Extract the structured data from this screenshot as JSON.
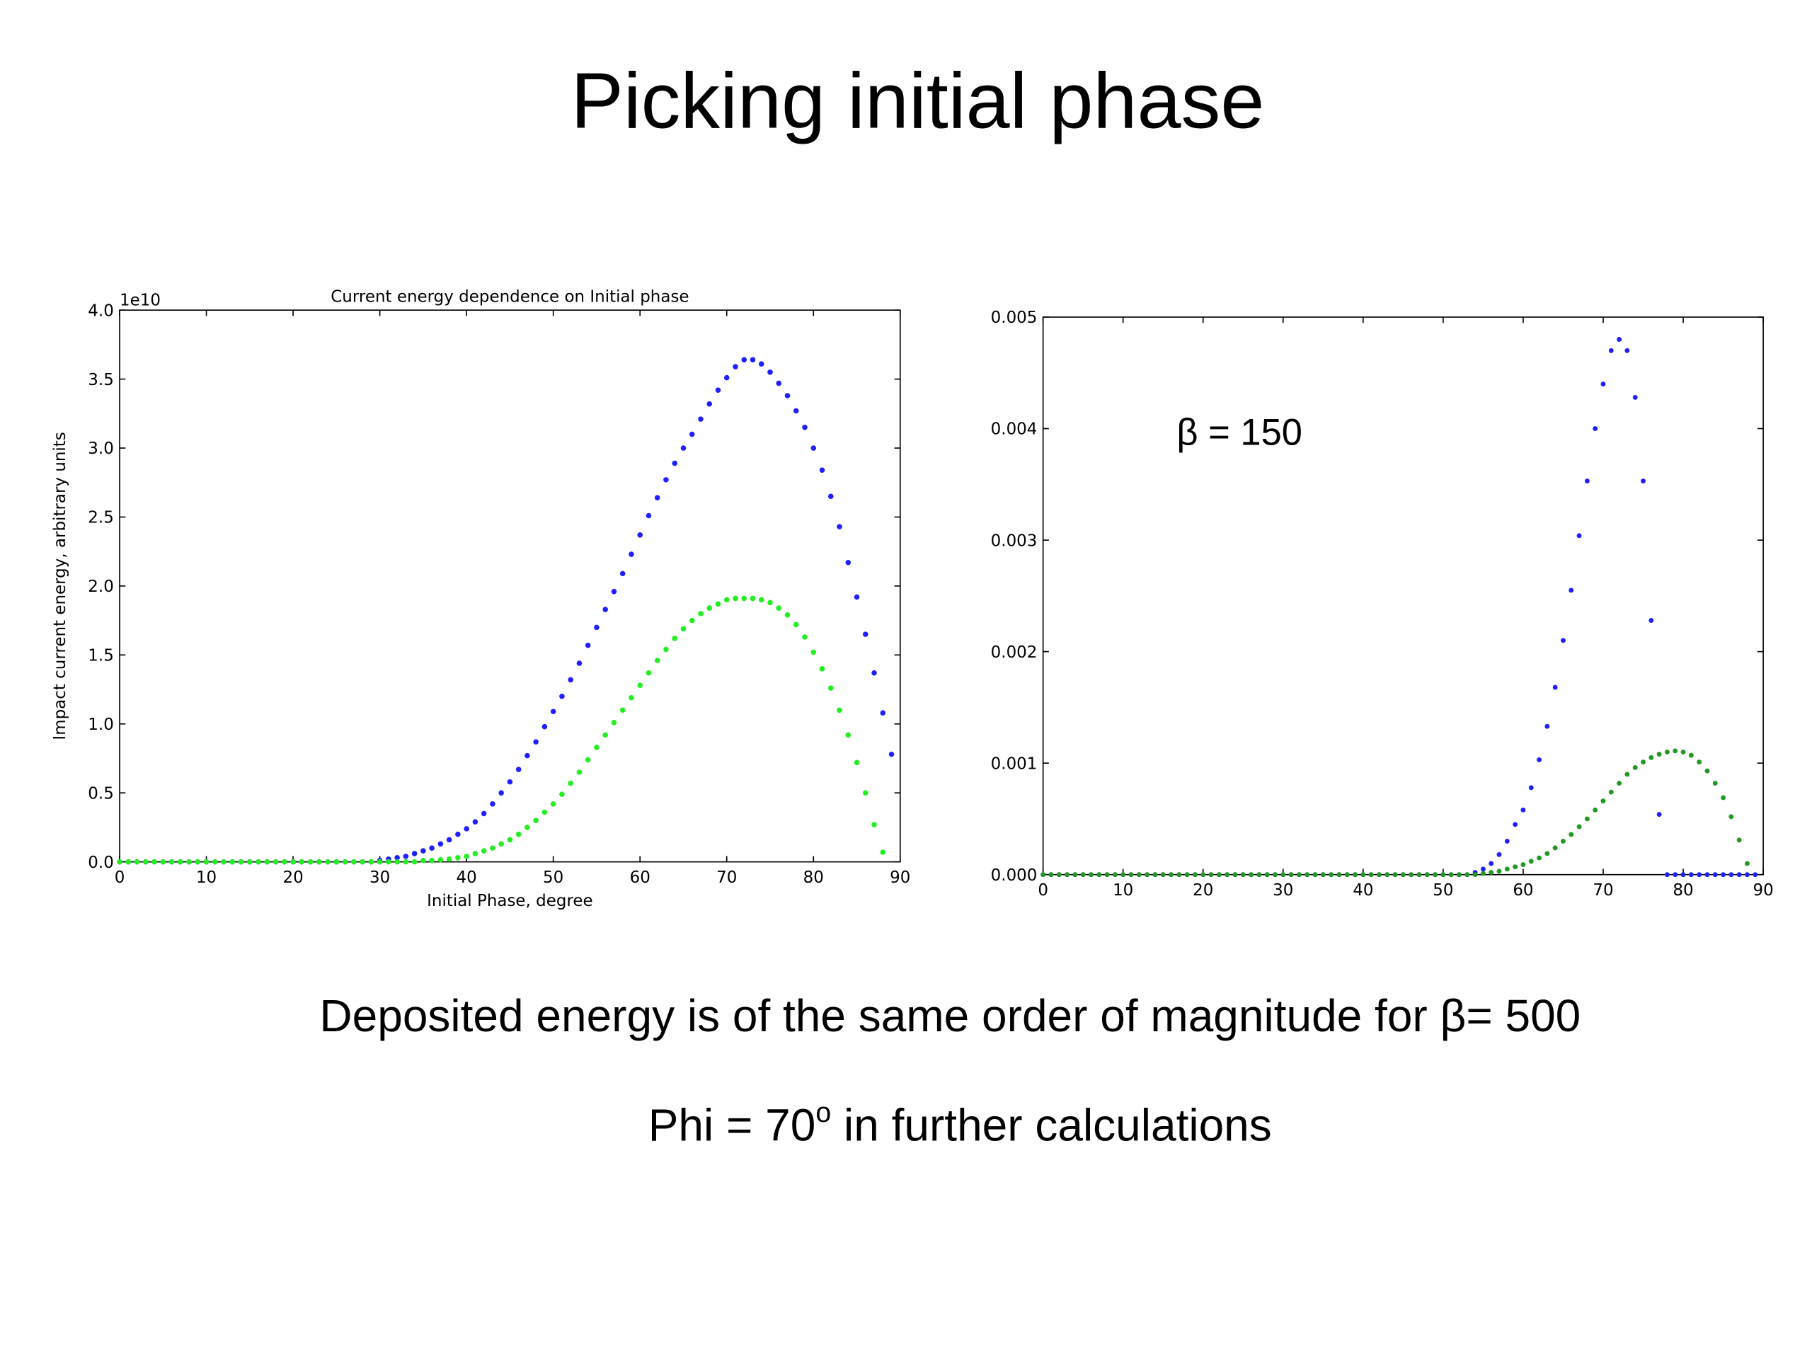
{
  "title": "Picking initial phase",
  "body": {
    "lines": [
      {
        "main": "Deposited energy is of the same order of magnitude for β= 500"
      },
      {
        "main": "Phi = 70",
        "sup": "o",
        "rest": " in further calculations"
      }
    ]
  },
  "chart_data": [
    {
      "type": "scatter",
      "title": "Current energy dependence on Initial phase",
      "xlabel": "Initial Phase, degree",
      "ylabel": "Impact current energy, arbitrary units",
      "offset_label": "1e10",
      "xlim": [
        0,
        90
      ],
      "ylim": [
        0,
        4
      ],
      "xticks": [
        0,
        10,
        20,
        30,
        40,
        50,
        60,
        70,
        80,
        90
      ],
      "yticks": [
        {
          "value": 0,
          "label": "0.0"
        },
        0.5,
        {
          "value": 1,
          "label": "1.0"
        },
        1.5,
        {
          "value": 2,
          "label": "2.0"
        },
        2.5,
        {
          "value": 3,
          "label": "3.0"
        },
        3.5,
        {
          "value": 4,
          "label": "4.0"
        }
      ],
      "x": [
        0,
        1,
        2,
        3,
        4,
        5,
        6,
        7,
        8,
        9,
        10,
        11,
        12,
        13,
        14,
        15,
        16,
        17,
        18,
        19,
        20,
        21,
        22,
        23,
        24,
        25,
        26,
        27,
        28,
        29,
        30,
        31,
        32,
        33,
        34,
        35,
        36,
        37,
        38,
        39,
        40,
        41,
        42,
        43,
        44,
        45,
        46,
        47,
        48,
        49,
        50,
        51,
        52,
        53,
        54,
        55,
        56,
        57,
        58,
        59,
        60,
        61,
        62,
        63,
        64,
        65,
        66,
        67,
        68,
        69,
        70,
        71,
        72,
        73,
        74,
        75,
        76,
        77,
        78,
        79,
        80,
        81,
        82,
        83,
        84,
        85,
        86,
        87,
        88,
        89
      ],
      "series": [
        {
          "color": "#1f1fff",
          "values": [
            0,
            0,
            0,
            0,
            0,
            0,
            0,
            0,
            0,
            0,
            0,
            0,
            0,
            0,
            0,
            0,
            0,
            0,
            0,
            0,
            0,
            0,
            0,
            0,
            0,
            0,
            0,
            0,
            0,
            0,
            0.01,
            0.02,
            0.03,
            0.04,
            0.06,
            0.08,
            0.1,
            0.13,
            0.16,
            0.2,
            0.24,
            0.29,
            0.35,
            0.42,
            0.5,
            0.58,
            0.67,
            0.77,
            0.87,
            0.98,
            1.09,
            1.2,
            1.32,
            1.44,
            1.57,
            1.7,
            1.83,
            1.96,
            2.09,
            2.23,
            2.37,
            2.51,
            2.64,
            2.77,
            2.89,
            3.0,
            3.1,
            3.21,
            3.32,
            3.42,
            3.51,
            3.59,
            3.64,
            3.64,
            3.61,
            3.55,
            3.47,
            3.38,
            3.27,
            3.15,
            3.0,
            2.84,
            2.65,
            2.43,
            2.17,
            1.92,
            1.65,
            1.37,
            1.08,
            0.78
          ]
        },
        {
          "color": "#22ee22",
          "values": [
            0,
            0,
            0,
            0,
            0,
            0,
            0,
            0,
            0,
            0,
            0,
            0,
            0,
            0,
            0,
            0,
            0,
            0,
            0,
            0,
            0,
            0,
            0,
            0,
            0,
            0,
            0,
            0,
            0,
            0,
            0,
            0,
            0,
            0,
            0,
            0.01,
            0.01,
            0.015,
            0.02,
            0.03,
            0.04,
            0.06,
            0.08,
            0.1,
            0.13,
            0.16,
            0.2,
            0.25,
            0.3,
            0.36,
            0.42,
            0.49,
            0.57,
            0.65,
            0.74,
            0.83,
            0.92,
            1.01,
            1.1,
            1.19,
            1.28,
            1.37,
            1.46,
            1.54,
            1.62,
            1.69,
            1.75,
            1.8,
            1.84,
            1.87,
            1.9,
            1.91,
            1.91,
            1.91,
            1.9,
            1.88,
            1.84,
            1.79,
            1.72,
            1.63,
            1.52,
            1.4,
            1.26,
            1.1,
            0.92,
            0.72,
            0.5,
            0.27,
            0.07,
            null
          ]
        }
      ]
    },
    {
      "type": "scatter",
      "annotation": "β = 150",
      "xlim": [
        0,
        90
      ],
      "ylim": [
        0,
        0.005
      ],
      "xticks": [
        0,
        10,
        20,
        30,
        40,
        50,
        60,
        70,
        80,
        90
      ],
      "yticks": [
        {
          "value": 0,
          "label": "0.000"
        },
        0.001,
        0.002,
        0.003,
        0.004,
        0.005
      ],
      "x": [
        0,
        1,
        2,
        3,
        4,
        5,
        6,
        7,
        8,
        9,
        10,
        11,
        12,
        13,
        14,
        15,
        16,
        17,
        18,
        19,
        20,
        21,
        22,
        23,
        24,
        25,
        26,
        27,
        28,
        29,
        30,
        31,
        32,
        33,
        34,
        35,
        36,
        37,
        38,
        39,
        40,
        41,
        42,
        43,
        44,
        45,
        46,
        47,
        48,
        49,
        50,
        51,
        52,
        53,
        54,
        55,
        56,
        57,
        58,
        59,
        60,
        61,
        62,
        63,
        64,
        65,
        66,
        67,
        68,
        69,
        70,
        71,
        72,
        73,
        74,
        75,
        76,
        77,
        78,
        79,
        80,
        81,
        82,
        83,
        84,
        85,
        86,
        87,
        88,
        89
      ],
      "series": [
        {
          "color": "#1f1fff",
          "values": [
            0,
            0,
            0,
            0,
            0,
            0,
            0,
            0,
            0,
            0,
            0,
            0,
            0,
            0,
            0,
            0,
            0,
            0,
            0,
            0,
            0,
            0,
            0,
            0,
            0,
            0,
            0,
            0,
            0,
            0,
            0,
            0,
            0,
            0,
            0,
            0,
            0,
            0,
            0,
            0,
            0,
            0,
            0,
            0,
            0,
            0,
            0,
            0,
            0,
            0,
            0,
            0,
            0,
            0,
            2e-05,
            5e-05,
            0.0001,
            0.00018,
            0.0003,
            0.00045,
            0.00058,
            0.00078,
            0.00103,
            0.00133,
            0.00168,
            0.0021,
            0.00255,
            0.00304,
            0.00353,
            0.004,
            0.0044,
            0.0047,
            0.0048,
            0.0047,
            0.00428,
            0.00353,
            0.00228,
            0.00054,
            0,
            0,
            0,
            0,
            0,
            0,
            0,
            0,
            0,
            0,
            0,
            0
          ]
        },
        {
          "color": "#229922",
          "values": [
            0,
            0,
            0,
            0,
            0,
            0,
            0,
            0,
            0,
            0,
            0,
            0,
            0,
            0,
            0,
            0,
            0,
            0,
            0,
            0,
            0,
            0,
            0,
            0,
            0,
            0,
            0,
            0,
            0,
            0,
            0,
            0,
            0,
            0,
            0,
            0,
            0,
            0,
            0,
            0,
            0,
            0,
            0,
            0,
            0,
            0,
            0,
            0,
            0,
            0,
            0,
            0,
            0,
            0,
            0,
            1e-05,
            2e-05,
            3e-05,
            5e-05,
            7e-05,
            9e-05,
            0.00012,
            0.00015,
            0.00019,
            0.00024,
            0.0003,
            0.00036,
            0.00043,
            0.0005,
            0.00058,
            0.00066,
            0.00074,
            0.00082,
            0.0009,
            0.00096,
            0.00101,
            0.00105,
            0.00108,
            0.0011,
            0.00111,
            0.0011,
            0.00107,
            0.00101,
            0.00093,
            0.00082,
            0.00069,
            0.00052,
            0.00031,
            0.0001,
            null
          ]
        }
      ]
    }
  ]
}
